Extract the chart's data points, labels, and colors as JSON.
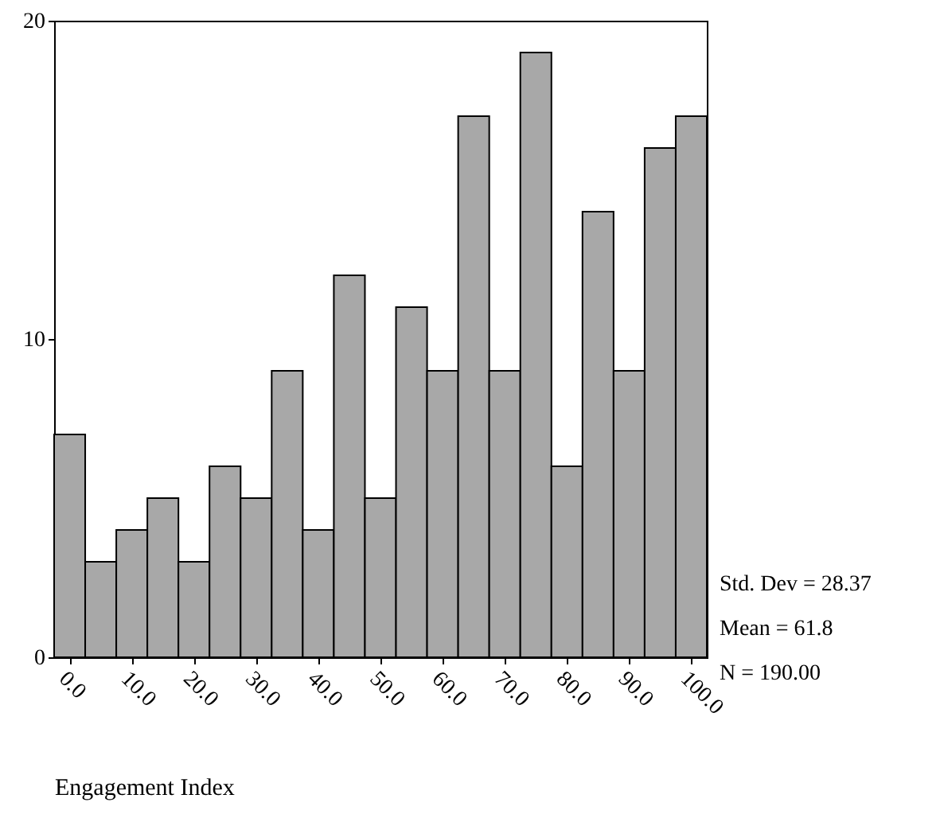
{
  "chart_data": {
    "type": "histogram",
    "xlabel": "Engagement Index",
    "bins": [
      -2.5,
      2.5,
      7.5,
      12.5,
      17.5,
      22.5,
      27.5,
      32.5,
      37.5,
      42.5,
      47.5,
      52.5,
      57.5,
      62.5,
      67.5,
      72.5,
      77.5,
      82.5,
      87.5,
      92.5,
      97.5,
      102.5
    ],
    "values": [
      7,
      3,
      4,
      5,
      3,
      6,
      5,
      9,
      4,
      12,
      5,
      11,
      9,
      17,
      9,
      19,
      6,
      14,
      9,
      16,
      17
    ],
    "color": "#a8a8a8",
    "xlim": [
      -2.5,
      102.5
    ],
    "xticks": [
      {
        "value": 0,
        "label": "0.0"
      },
      {
        "value": 10,
        "label": "10.0"
      },
      {
        "value": 20,
        "label": "20.0"
      },
      {
        "value": 30,
        "label": "30.0"
      },
      {
        "value": 40,
        "label": "40.0"
      },
      {
        "value": 50,
        "label": "50.0"
      },
      {
        "value": 60,
        "label": "60.0"
      },
      {
        "value": 70,
        "label": "70.0"
      },
      {
        "value": 80,
        "label": "80.0"
      },
      {
        "value": 90,
        "label": "90.0"
      },
      {
        "value": 100,
        "label": "100.0"
      }
    ],
    "ylim": [
      0,
      20
    ],
    "yticks": [
      0,
      10,
      20
    ],
    "annotations": [
      "Std. Dev = 28.37",
      "Mean = 61.8",
      "N = 190.00"
    ]
  }
}
